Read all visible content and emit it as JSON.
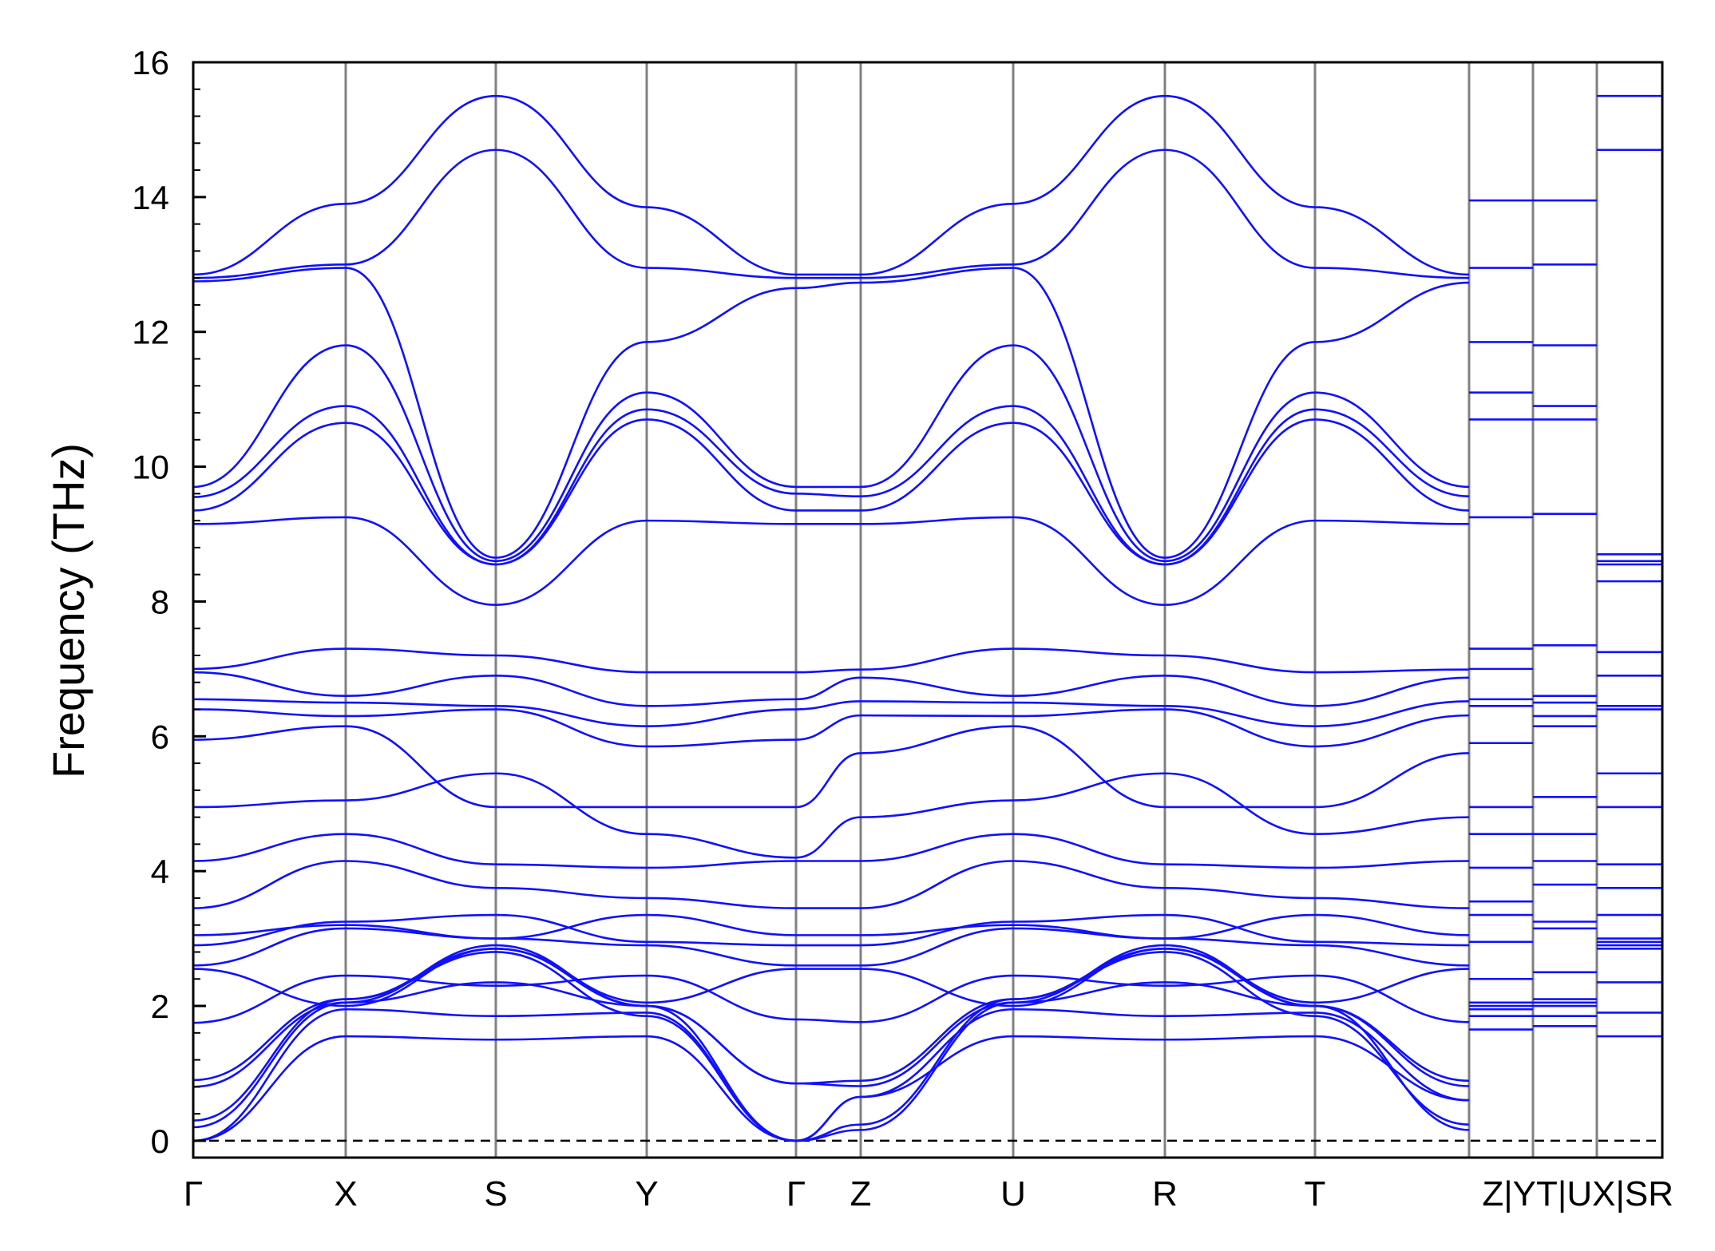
{
  "chart_data": {
    "type": "line",
    "ylabel": "Frequency (THz)",
    "ylim": [
      -0.25,
      16
    ],
    "ytick_values": [
      0,
      2,
      4,
      6,
      8,
      10,
      12,
      14,
      16
    ],
    "ytick_labels": [
      "0",
      "2",
      "4",
      "6",
      "8",
      "10",
      "12",
      "14",
      "16"
    ],
    "xtick_labels": [
      "Γ",
      "X",
      "S",
      "Y",
      "Γ",
      "Z",
      "U",
      "R",
      "T",
      "Z|Y",
      "T|U",
      "X|S",
      "R"
    ],
    "zero_line": 0,
    "colors": {
      "bands": "#1010ff",
      "vlines": "#808080",
      "zero": "#000000",
      "axes": "#000000"
    },
    "segments": [
      {
        "path": [
          "Γ",
          "X",
          "S",
          "Y",
          "Γ",
          "Z",
          "U",
          "R",
          "T",
          "Z"
        ],
        "bands": [
          [
            0,
            1.55,
            1.5,
            1.55,
            0
          ],
          [
            0,
            1.95,
            1.85,
            1.9,
            0
          ],
          [
            0.2,
            2.05,
            2.35,
            2.0,
            0
          ],
          [
            0.3,
            2.1,
            2.8,
            1.85,
            0
          ],
          [
            0.8,
            2.05,
            2.9,
            2.0,
            0.85
          ],
          [
            0.9,
            2.1,
            2.85,
            2.0,
            0.85
          ],
          [
            1.75,
            2.45,
            2.3,
            2.45,
            1.8
          ],
          [
            2.55,
            2.0,
            2.85,
            2.05,
            2.55
          ],
          [
            2.6,
            3.15,
            3.0,
            2.9,
            2.6
          ],
          [
            2.9,
            3.25,
            3.35,
            2.95,
            2.9
          ],
          [
            3.05,
            3.2,
            3.0,
            3.35,
            3.05
          ],
          [
            3.45,
            4.15,
            3.75,
            3.6,
            3.45
          ],
          [
            4.15,
            4.55,
            4.1,
            4.05,
            4.15
          ],
          [
            4.95,
            5.05,
            5.45,
            4.55,
            4.2
          ],
          [
            5.95,
            6.15,
            4.95,
            4.95,
            4.95
          ],
          [
            6.4,
            6.3,
            6.4,
            5.85,
            5.95
          ],
          [
            6.55,
            6.5,
            6.45,
            6.15,
            6.4
          ],
          [
            6.95,
            6.6,
            6.9,
            6.45,
            6.55
          ],
          [
            7.0,
            7.3,
            7.2,
            6.95,
            6.95
          ],
          [
            9.15,
            9.25,
            7.95,
            9.2,
            9.15
          ],
          [
            9.35,
            10.65,
            8.55,
            10.7,
            9.35
          ],
          [
            9.55,
            10.9,
            8.55,
            10.85,
            9.6
          ],
          [
            9.7,
            11.8,
            8.6,
            11.1,
            9.7
          ],
          [
            12.75,
            12.95,
            8.65,
            11.85,
            12.65
          ],
          [
            12.8,
            13.0,
            14.7,
            12.95,
            12.8
          ],
          [
            12.85,
            13.9,
            15.5,
            13.85,
            12.85
          ]
        ]
      },
      {
        "path": [
          "Y",
          "T"
        ],
        "levels": [
          1.65,
          1.85,
          1.95,
          2.0,
          2.05,
          2.4,
          2.95,
          3.35,
          3.55,
          4.05,
          4.55,
          4.95,
          5.9,
          6.45,
          6.55,
          7.0,
          7.3,
          9.25,
          10.7,
          11.1,
          11.85,
          12.95,
          13.95
        ]
      },
      {
        "path": [
          "U",
          "X"
        ],
        "levels": [
          1.7,
          1.85,
          2.0,
          2.05,
          2.1,
          2.5,
          3.15,
          3.25,
          3.8,
          4.15,
          4.55,
          5.1,
          6.15,
          6.3,
          6.5,
          6.6,
          7.35,
          9.3,
          10.7,
          10.9,
          11.8,
          13.0,
          13.95
        ]
      },
      {
        "path": [
          "S",
          "R"
        ],
        "levels": [
          1.55,
          1.9,
          2.35,
          2.85,
          2.9,
          2.95,
          3.0,
          3.35,
          3.75,
          4.1,
          4.95,
          5.45,
          6.4,
          6.45,
          6.9,
          7.25,
          8.3,
          8.55,
          8.6,
          8.7,
          14.7,
          15.5
        ]
      }
    ]
  }
}
